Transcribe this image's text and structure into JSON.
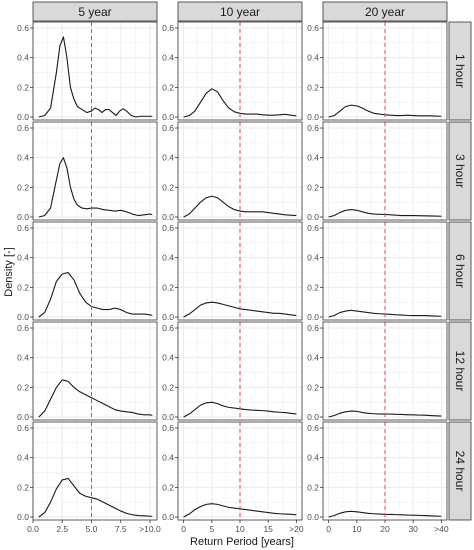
{
  "chart_data": {
    "type": "line",
    "subtype": "faceted density plot",
    "xlabel": "Return Period [years]",
    "ylabel": "Density [-]",
    "ylim": [
      0,
      0.6
    ],
    "yticks": [
      0.0,
      0.2,
      0.4,
      0.6
    ],
    "ytick_labels": [
      "0.0",
      "0.2",
      "0.4",
      "0.6"
    ],
    "grid": true,
    "reference_line": {
      "style": "dashed",
      "color": "#e8474a"
    },
    "line_color": "#1a1a1a",
    "panel_background": "#ffffff",
    "grid_color": "#ebebeb",
    "strip_fill": "#d9d9d9",
    "columns": [
      {
        "label": "5 year",
        "xlim": [
          0,
          10.6
        ],
        "xticks": [
          0,
          2.5,
          5,
          7.5,
          10
        ],
        "xtick_labels": [
          "0.0",
          "2.5",
          "5.0",
          "7.5",
          ">10.0"
        ],
        "vline": 5
      },
      {
        "label": "10 year",
        "xlim": [
          -1,
          21
        ],
        "xticks": [
          0,
          5,
          10,
          15,
          20
        ],
        "xtick_labels": [
          "0",
          "5",
          "10",
          "15",
          ">20"
        ],
        "vline": 10
      },
      {
        "label": "20 year",
        "xlim": [
          -2,
          42
        ],
        "xticks": [
          0,
          10,
          20,
          30,
          40
        ],
        "xtick_labels": [
          "0",
          "10",
          "20",
          "30",
          ">40"
        ],
        "vline": 20
      }
    ],
    "rows": [
      "1 hour",
      "3 hour",
      "6 hour",
      "12 hour",
      "24 hour"
    ],
    "series": [
      [
        {
          "x": [
            0.5,
            1.0,
            1.5,
            2.0,
            2.3,
            2.6,
            2.9,
            3.2,
            3.5,
            3.8,
            4.2,
            4.6,
            5.0,
            5.3,
            5.6,
            5.9,
            6.2,
            6.5,
            6.8,
            7.1,
            7.4,
            7.7,
            8.0,
            8.4,
            8.8,
            9.2,
            9.6,
            10.0,
            10.2
          ],
          "y": [
            0.0,
            0.01,
            0.06,
            0.3,
            0.48,
            0.54,
            0.4,
            0.2,
            0.12,
            0.07,
            0.05,
            0.03,
            0.04,
            0.06,
            0.05,
            0.03,
            0.05,
            0.05,
            0.03,
            0.01,
            0.04,
            0.055,
            0.04,
            0.01,
            0.0,
            0.005,
            0.005,
            0.005,
            0.005
          ]
        },
        {
          "x": [
            0,
            1,
            2,
            3,
            4,
            5,
            6,
            7,
            8,
            9,
            10,
            11,
            12,
            13,
            14,
            15,
            16,
            17,
            18,
            19,
            20
          ],
          "y": [
            0.0,
            0.01,
            0.04,
            0.1,
            0.16,
            0.19,
            0.17,
            0.11,
            0.06,
            0.035,
            0.025,
            0.02,
            0.02,
            0.02,
            0.015,
            0.012,
            0.012,
            0.015,
            0.018,
            0.012,
            0.008
          ]
        },
        {
          "x": [
            0,
            2,
            4,
            6,
            8,
            10,
            12,
            14,
            16,
            18,
            20,
            22,
            24,
            26,
            28,
            30,
            32,
            34,
            36,
            38,
            40
          ],
          "y": [
            0.0,
            0.01,
            0.04,
            0.07,
            0.08,
            0.075,
            0.06,
            0.04,
            0.025,
            0.02,
            0.015,
            0.012,
            0.01,
            0.01,
            0.012,
            0.01,
            0.008,
            0.008,
            0.008,
            0.006,
            0.005
          ]
        }
      ],
      [
        {
          "x": [
            0.5,
            1.0,
            1.5,
            2.0,
            2.3,
            2.6,
            2.9,
            3.2,
            3.5,
            3.8,
            4.2,
            4.6,
            5.0,
            5.5,
            6.0,
            6.5,
            7.0,
            7.5,
            8.0,
            8.5,
            9.0,
            9.5,
            10.0,
            10.2
          ],
          "y": [
            0.0,
            0.01,
            0.06,
            0.25,
            0.36,
            0.4,
            0.33,
            0.2,
            0.12,
            0.08,
            0.06,
            0.055,
            0.06,
            0.06,
            0.05,
            0.045,
            0.04,
            0.045,
            0.035,
            0.02,
            0.01,
            0.015,
            0.02,
            0.015
          ]
        },
        {
          "x": [
            0,
            1,
            2,
            3,
            4,
            5,
            6,
            7,
            8,
            9,
            10,
            11,
            12,
            13,
            14,
            15,
            16,
            17,
            18,
            19,
            20
          ],
          "y": [
            0.0,
            0.02,
            0.06,
            0.1,
            0.13,
            0.14,
            0.13,
            0.1,
            0.07,
            0.05,
            0.04,
            0.035,
            0.035,
            0.035,
            0.035,
            0.03,
            0.025,
            0.02,
            0.015,
            0.012,
            0.01
          ]
        },
        {
          "x": [
            0,
            2,
            4,
            6,
            8,
            10,
            12,
            14,
            16,
            18,
            20,
            22,
            24,
            26,
            28,
            30,
            32,
            34,
            36,
            38,
            40
          ],
          "y": [
            0.0,
            0.01,
            0.03,
            0.045,
            0.05,
            0.045,
            0.035,
            0.025,
            0.02,
            0.018,
            0.017,
            0.015,
            0.012,
            0.01,
            0.01,
            0.01,
            0.009,
            0.008,
            0.007,
            0.006,
            0.005
          ]
        }
      ],
      [
        {
          "x": [
            0.5,
            1.0,
            1.5,
            2.0,
            2.5,
            3.0,
            3.5,
            4.0,
            4.5,
            5.0,
            5.5,
            6.0,
            6.5,
            7.0,
            7.5,
            8.0,
            8.5,
            9.0,
            9.5,
            10.0,
            10.2
          ],
          "y": [
            0.0,
            0.03,
            0.12,
            0.24,
            0.29,
            0.3,
            0.25,
            0.16,
            0.1,
            0.07,
            0.06,
            0.05,
            0.05,
            0.06,
            0.05,
            0.03,
            0.02,
            0.02,
            0.02,
            0.015,
            0.01
          ]
        },
        {
          "x": [
            0,
            1,
            2,
            3,
            4,
            5,
            6,
            7,
            8,
            9,
            10,
            11,
            12,
            13,
            14,
            15,
            16,
            17,
            18,
            19,
            20
          ],
          "y": [
            0.0,
            0.02,
            0.05,
            0.08,
            0.095,
            0.1,
            0.095,
            0.085,
            0.075,
            0.065,
            0.055,
            0.05,
            0.045,
            0.04,
            0.035,
            0.03,
            0.025,
            0.025,
            0.02,
            0.015,
            0.01
          ]
        },
        {
          "x": [
            0,
            2,
            4,
            6,
            8,
            10,
            12,
            14,
            16,
            18,
            20,
            22,
            24,
            26,
            28,
            30,
            32,
            34,
            36,
            38,
            40
          ],
          "y": [
            0.0,
            0.01,
            0.03,
            0.04,
            0.045,
            0.04,
            0.035,
            0.03,
            0.025,
            0.022,
            0.02,
            0.018,
            0.015,
            0.013,
            0.011,
            0.01,
            0.01,
            0.01,
            0.008,
            0.006,
            0.005
          ]
        }
      ],
      [
        {
          "x": [
            0.5,
            1.0,
            1.5,
            2.0,
            2.5,
            3.0,
            3.5,
            4.0,
            4.5,
            5.0,
            5.5,
            6.0,
            6.5,
            7.0,
            7.5,
            8.0,
            8.5,
            9.0,
            9.5,
            10.0,
            10.2
          ],
          "y": [
            0.0,
            0.04,
            0.12,
            0.2,
            0.25,
            0.24,
            0.2,
            0.17,
            0.15,
            0.13,
            0.11,
            0.09,
            0.07,
            0.05,
            0.04,
            0.035,
            0.03,
            0.02,
            0.015,
            0.015,
            0.01
          ]
        },
        {
          "x": [
            0,
            1,
            2,
            3,
            4,
            5,
            6,
            7,
            8,
            9,
            10,
            11,
            12,
            13,
            14,
            15,
            16,
            17,
            18,
            19,
            20
          ],
          "y": [
            0.0,
            0.02,
            0.05,
            0.08,
            0.095,
            0.1,
            0.09,
            0.075,
            0.065,
            0.06,
            0.055,
            0.05,
            0.047,
            0.045,
            0.043,
            0.04,
            0.035,
            0.032,
            0.03,
            0.025,
            0.02
          ]
        },
        {
          "x": [
            0,
            2,
            4,
            6,
            8,
            10,
            12,
            14,
            16,
            18,
            20,
            22,
            24,
            26,
            28,
            30,
            32,
            34,
            36,
            38,
            40
          ],
          "y": [
            0.0,
            0.01,
            0.025,
            0.035,
            0.04,
            0.038,
            0.03,
            0.025,
            0.022,
            0.02,
            0.02,
            0.02,
            0.018,
            0.017,
            0.015,
            0.015,
            0.013,
            0.012,
            0.01,
            0.008,
            0.006
          ]
        }
      ],
      [
        {
          "x": [
            0.5,
            1.0,
            1.5,
            2.0,
            2.5,
            3.0,
            3.5,
            4.0,
            4.5,
            5.0,
            5.5,
            6.0,
            6.5,
            7.0,
            7.5,
            8.0,
            8.5,
            9.0,
            9.5,
            10.0,
            10.2
          ],
          "y": [
            0.0,
            0.03,
            0.1,
            0.19,
            0.25,
            0.26,
            0.21,
            0.16,
            0.14,
            0.13,
            0.12,
            0.1,
            0.08,
            0.06,
            0.04,
            0.025,
            0.015,
            0.01,
            0.008,
            0.005,
            0.005
          ]
        },
        {
          "x": [
            0,
            1,
            2,
            3,
            4,
            5,
            6,
            7,
            8,
            9,
            10,
            11,
            12,
            13,
            14,
            15,
            16,
            17,
            18,
            19,
            20
          ],
          "y": [
            0.0,
            0.02,
            0.05,
            0.07,
            0.085,
            0.09,
            0.085,
            0.075,
            0.065,
            0.06,
            0.055,
            0.05,
            0.045,
            0.04,
            0.035,
            0.03,
            0.025,
            0.022,
            0.02,
            0.018,
            0.015
          ]
        },
        {
          "x": [
            0,
            2,
            4,
            6,
            8,
            10,
            12,
            14,
            16,
            18,
            20,
            22,
            24,
            26,
            28,
            30,
            32,
            34,
            36,
            38,
            40
          ],
          "y": [
            0.0,
            0.01,
            0.025,
            0.035,
            0.038,
            0.035,
            0.03,
            0.025,
            0.022,
            0.02,
            0.018,
            0.017,
            0.016,
            0.015,
            0.013,
            0.012,
            0.011,
            0.01,
            0.008,
            0.006,
            0.005
          ]
        }
      ]
    ]
  }
}
